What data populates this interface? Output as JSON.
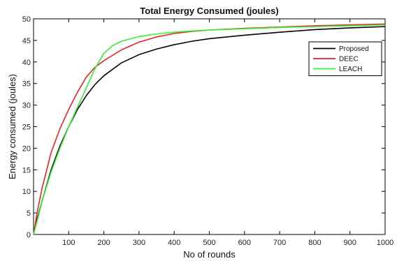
{
  "chart_data": {
    "type": "line",
    "title": "Total Energy Consumed (joules)",
    "xlabel": "No of rounds",
    "ylabel": "Energy consumed (joules)",
    "xlim": [
      0,
      1000
    ],
    "ylim": [
      0,
      50
    ],
    "xticks": [
      100,
      200,
      300,
      400,
      500,
      600,
      700,
      800,
      900,
      1000
    ],
    "yticks": [
      0,
      5,
      10,
      15,
      20,
      25,
      30,
      35,
      40,
      45,
      50
    ],
    "grid": false,
    "legend_position": "top-right",
    "series": [
      {
        "name": "Proposed",
        "color": "#000000",
        "x": [
          0,
          10,
          25,
          50,
          75,
          100,
          125,
          150,
          175,
          200,
          250,
          300,
          350,
          400,
          450,
          500,
          600,
          700,
          800,
          900,
          1000
        ],
        "y": [
          0,
          3.5,
          8,
          15,
          20.5,
          25,
          29,
          32.2,
          34.8,
          36.8,
          39.8,
          41.7,
          43,
          44,
          44.8,
          45.4,
          46.2,
          46.9,
          47.5,
          47.9,
          48.2
        ]
      },
      {
        "name": "DEEC",
        "color": "#ee2222",
        "x": [
          0,
          10,
          25,
          50,
          75,
          100,
          125,
          150,
          175,
          200,
          250,
          300,
          350,
          400,
          450,
          500,
          600,
          700,
          800,
          900,
          1000
        ],
        "y": [
          0,
          5,
          11,
          19,
          24.5,
          29,
          33,
          36.5,
          38.8,
          40.3,
          42.8,
          44.6,
          45.8,
          46.6,
          47.1,
          47.4,
          47.8,
          48.1,
          48.4,
          48.6,
          48.8
        ]
      },
      {
        "name": "LEACH",
        "color": "#33ee33",
        "x": [
          0,
          10,
          25,
          50,
          75,
          100,
          125,
          150,
          175,
          200,
          225,
          250,
          300,
          350,
          400,
          450,
          500,
          600,
          700,
          800,
          900,
          1000
        ],
        "y": [
          0,
          3,
          8,
          14.5,
          20,
          25,
          29.5,
          34,
          38.5,
          42,
          43.8,
          44.8,
          45.9,
          46.5,
          46.9,
          47.2,
          47.4,
          47.7,
          48,
          48.2,
          48.4,
          48.6
        ]
      }
    ]
  }
}
